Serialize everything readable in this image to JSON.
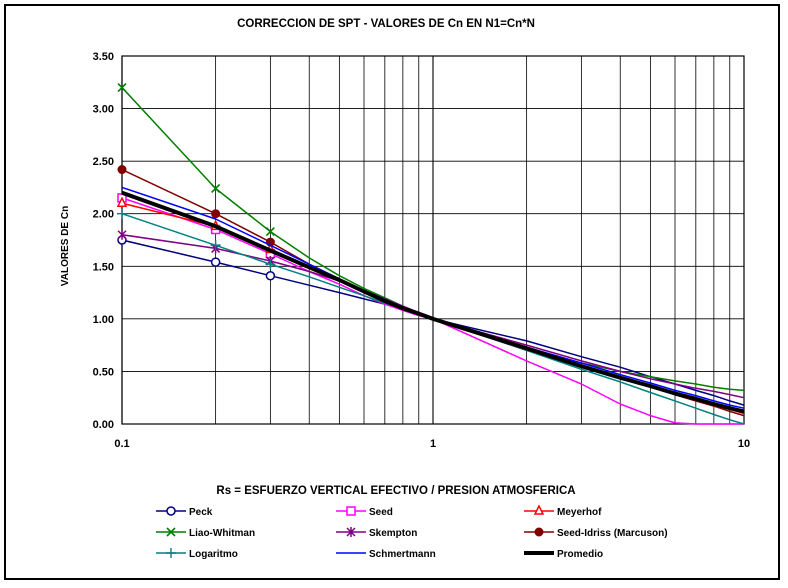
{
  "chart_data": {
    "type": "line",
    "title": "CORRECCION DE SPT -  VALORES DE Cn EN N1=Cn*N",
    "xlabel": "Rs = ESFUERZO VERTICAL EFECTIVO / PRESION ATMOSFERICA",
    "ylabel": "VALORES DE Cn",
    "x_scale": "log",
    "xlim": [
      0.1,
      10
    ],
    "ylim": [
      0,
      3.5
    ],
    "x_ticks": [
      "0.1",
      "1",
      "10"
    ],
    "y_ticks": [
      "0.00",
      "0.50",
      "1.00",
      "1.50",
      "2.00",
      "2.50",
      "3.00",
      "3.50"
    ],
    "grid": true,
    "legend_position": "bottom",
    "x": [
      0.1,
      0.2,
      0.3,
      0.4,
      0.5,
      0.6,
      0.7,
      0.8,
      0.9,
      1,
      2,
      3,
      4,
      5,
      6,
      7,
      8,
      9,
      10
    ],
    "series": [
      {
        "name": "Peck",
        "color": "#00007f",
        "marker": "circle",
        "values": [
          1.75,
          1.54,
          1.41,
          1.32,
          1.25,
          1.19,
          1.14,
          1.09,
          1.04,
          1.0,
          0.79,
          0.64,
          0.54,
          0.45,
          0.38,
          0.32,
          0.27,
          0.22,
          0.18
        ]
      },
      {
        "name": "Seed",
        "color": "#ff00ff",
        "marker": "square",
        "values": [
          2.15,
          1.85,
          1.62,
          1.45,
          1.33,
          1.22,
          1.14,
          1.08,
          1.03,
          1.0,
          0.6,
          0.38,
          0.19,
          0.08,
          0.01,
          0.0,
          0.0,
          0.0,
          0.0
        ]
      },
      {
        "name": "Meyerhof",
        "color": "#ff0000",
        "marker": "triangle",
        "values": [
          2.1,
          1.88,
          1.66,
          1.5,
          1.38,
          1.27,
          1.18,
          1.1,
          1.05,
          1.0,
          0.7,
          0.55,
          0.45,
          0.36,
          0.28,
          0.22,
          0.18,
          0.14,
          0.1
        ]
      },
      {
        "name": "Liao-Whitman",
        "color": "#007f00",
        "marker": "x",
        "values": [
          3.2,
          2.24,
          1.83,
          1.58,
          1.41,
          1.29,
          1.2,
          1.12,
          1.05,
          1.0,
          0.71,
          0.58,
          0.5,
          0.45,
          0.41,
          0.38,
          0.35,
          0.33,
          0.32
        ]
      },
      {
        "name": "Skempton",
        "color": "#800080",
        "marker": "star",
        "values": [
          1.8,
          1.67,
          1.55,
          1.45,
          1.36,
          1.27,
          1.19,
          1.12,
          1.06,
          1.0,
          0.75,
          0.6,
          0.5,
          0.43,
          0.38,
          0.34,
          0.31,
          0.28,
          0.25
        ]
      },
      {
        "name": "Seed-Idriss (Marcuson)",
        "color": "#800000",
        "marker": "dot",
        "values": [
          2.42,
          2.0,
          1.73,
          1.52,
          1.38,
          1.26,
          1.17,
          1.1,
          1.04,
          1.0,
          0.72,
          0.56,
          0.45,
          0.36,
          0.28,
          0.22,
          0.17,
          0.12,
          0.08
        ]
      },
      {
        "name": "Logaritmo",
        "color": "#008080",
        "marker": "plus",
        "values": [
          2.0,
          1.7,
          1.52,
          1.4,
          1.3,
          1.22,
          1.15,
          1.1,
          1.05,
          1.0,
          0.7,
          0.52,
          0.4,
          0.3,
          0.22,
          0.15,
          0.09,
          0.04,
          0.0
        ]
      },
      {
        "name": "Schmertmann",
        "color": "#0000ff",
        "marker": "none",
        "values": [
          2.25,
          1.95,
          1.7,
          1.52,
          1.38,
          1.27,
          1.18,
          1.11,
          1.05,
          1.0,
          0.73,
          0.58,
          0.47,
          0.39,
          0.32,
          0.27,
          0.22,
          0.18,
          0.15
        ]
      },
      {
        "name": "Promedio",
        "color": "#000000",
        "marker": "none",
        "width": 4,
        "values": [
          2.2,
          1.88,
          1.65,
          1.49,
          1.37,
          1.26,
          1.17,
          1.1,
          1.05,
          1.0,
          0.72,
          0.55,
          0.44,
          0.36,
          0.29,
          0.24,
          0.19,
          0.15,
          0.12
        ]
      }
    ]
  }
}
